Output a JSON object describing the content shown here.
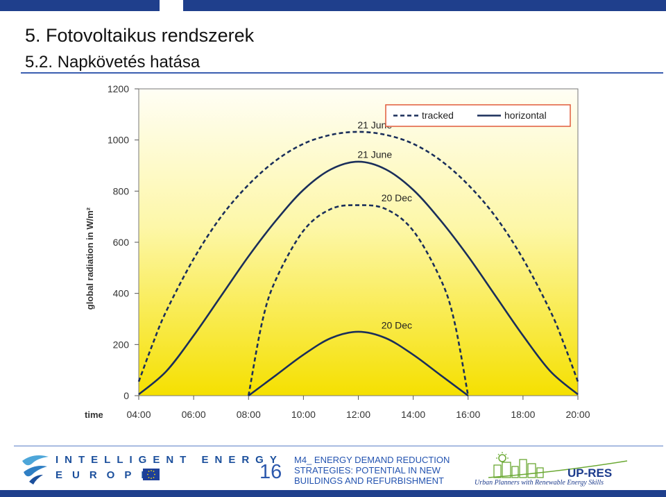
{
  "slide": {
    "title": "5. Fotovoltaikus rendszerek",
    "subtitle": "5.2. Napkövetés hatása",
    "page_number": "16",
    "footer_lines": [
      "M4_ ENERGY DEMAND REDUCTION",
      "STRATEGIES: POTENTIAL IN NEW",
      "BUILDINGS AND REFURBISHMENT"
    ]
  },
  "logos": {
    "iee_line1": "INTELLIGENT ENERGY",
    "iee_line2": "EUROPE",
    "upres_name": "UP-RES",
    "upres_tagline": "Urban Planners with Renewable Energy Skills"
  },
  "colors": {
    "accent_blue": "#1f3f8c",
    "legend_border": "#e05a3a",
    "series_color": "#1a2e5a",
    "plot_top": "#fffef5",
    "plot_bottom": "#f5e000"
  },
  "chart_data": {
    "type": "line",
    "title": "",
    "xlabel": "time",
    "ylabel": "global radiation in W/m²",
    "x_ticks": [
      "04:00",
      "06:00",
      "08:00",
      "10:00",
      "12:00",
      "14:00",
      "16:00",
      "18:00",
      "20:00"
    ],
    "x_range": [
      4,
      20
    ],
    "ylim": [
      0,
      1200
    ],
    "y_ticks": [
      0,
      200,
      400,
      600,
      800,
      1000,
      1200
    ],
    "grid": false,
    "legend": {
      "placement": "top-right",
      "entries": [
        "tracked",
        "horizontal"
      ]
    },
    "series": [
      {
        "group": "tracked",
        "annotation": "21 June",
        "dash": true,
        "x": [
          4,
          4.5,
          5,
          6,
          7,
          8,
          9,
          10,
          11,
          12,
          13,
          14,
          15,
          16,
          17,
          18,
          19,
          19.5,
          20
        ],
        "y": [
          55,
          200,
          330,
          535,
          700,
          825,
          920,
          985,
          1020,
          1032,
          1020,
          985,
          920,
          825,
          700,
          535,
          330,
          200,
          55
        ]
      },
      {
        "group": "horizontal",
        "annotation": "21 June",
        "dash": false,
        "x": [
          4,
          5,
          6,
          7,
          8,
          9,
          10,
          11,
          12,
          13,
          14,
          15,
          16,
          17,
          18,
          19,
          20
        ],
        "y": [
          5,
          95,
          235,
          390,
          545,
          685,
          805,
          885,
          915,
          885,
          805,
          685,
          545,
          390,
          235,
          95,
          5
        ]
      },
      {
        "group": "tracked",
        "annotation": "20 Dec",
        "dash": true,
        "x": [
          8,
          8.5,
          9,
          10,
          11,
          12,
          13,
          14,
          15,
          15.5,
          16
        ],
        "y": [
          0,
          290,
          455,
          645,
          730,
          745,
          730,
          645,
          455,
          290,
          0
        ]
      },
      {
        "group": "horizontal",
        "annotation": "20 Dec",
        "dash": false,
        "x": [
          8,
          9,
          10,
          11,
          12,
          13,
          14,
          15,
          16
        ],
        "y": [
          0,
          80,
          160,
          225,
          250,
          225,
          160,
          80,
          0
        ]
      }
    ],
    "annotations": [
      {
        "text": "21 June",
        "x": 12.6,
        "y": 1045
      },
      {
        "text": "21 June",
        "x": 12.6,
        "y": 930
      },
      {
        "text": "20 Dec",
        "x": 13.4,
        "y": 760
      },
      {
        "text": "20 Dec",
        "x": 13.4,
        "y": 262
      }
    ]
  }
}
